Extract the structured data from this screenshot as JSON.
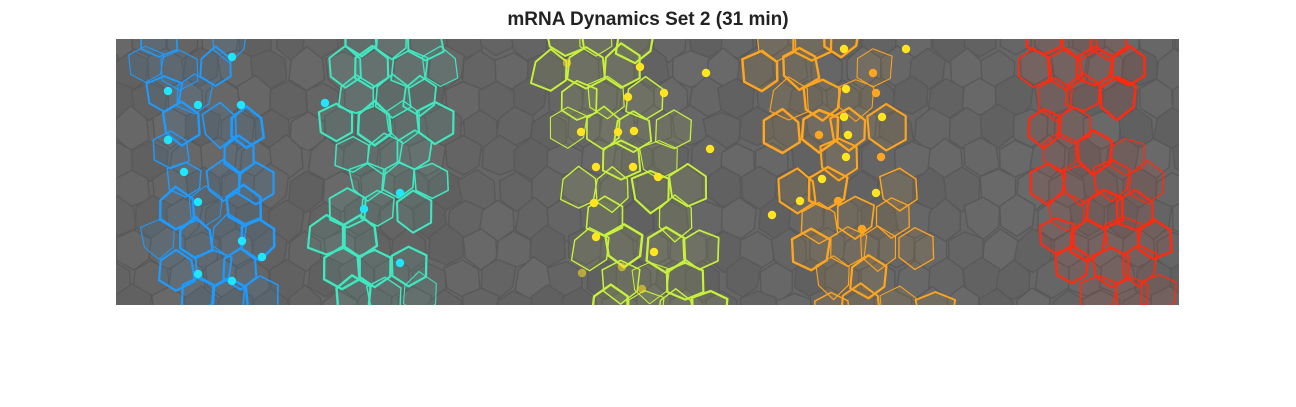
{
  "figure": {
    "title": "mRNA Dynamics Set 2 (31 min)"
  },
  "colors": {
    "background": "#666666",
    "cell_border": "#5a5a5a",
    "stripes": [
      "#1e9bff",
      "#3fe8c0",
      "#c8f23a",
      "#ffa51e",
      "#ff2a10"
    ],
    "spot_colors": [
      "#1ee6ff",
      "#ffe41e",
      "#ffe41e",
      "#ffa51e"
    ]
  },
  "stripes": [
    {
      "name": "stripe-blue",
      "color": "#1e9bff",
      "spot_color": "#1ee6ff",
      "spot_count": 10
    },
    {
      "name": "stripe-teal",
      "color": "#3fe8c0",
      "spot_color": "#1ee6ff",
      "spot_count": 4
    },
    {
      "name": "stripe-lime",
      "color": "#c8f23a",
      "spot_color": "#ffe41e",
      "spot_count": 16
    },
    {
      "name": "stripe-orange",
      "color": "#ffa51e",
      "spot_color": "#ffe41e",
      "spot_count": 14
    },
    {
      "name": "stripe-red",
      "color": "#ff2a10",
      "spot_color": null,
      "spot_count": 0
    }
  ]
}
